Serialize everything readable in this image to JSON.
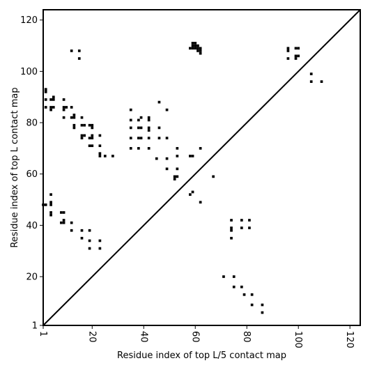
{
  "chart_data": {
    "type": "heatmap",
    "title": "",
    "xlabel": "Residue index of top L/5 contact map",
    "ylabel": "Residue index of top L contact map",
    "xlim": [
      1,
      124
    ],
    "ylim": [
      1,
      124
    ],
    "x_ticks": [
      1,
      20,
      40,
      60,
      80,
      100,
      120
    ],
    "y_ticks": [
      1,
      20,
      40,
      60,
      80,
      100,
      120
    ],
    "diagonal": true,
    "grid": false,
    "cell_color": "#000000",
    "points": [
      [
        12,
        108
      ],
      [
        15,
        108
      ],
      [
        15,
        105
      ],
      [
        59,
        109
      ],
      [
        59,
        110
      ],
      [
        59,
        111
      ],
      [
        60,
        109
      ],
      [
        60,
        110
      ],
      [
        60,
        111
      ],
      [
        61,
        108
      ],
      [
        61,
        109
      ],
      [
        61,
        110
      ],
      [
        62,
        107
      ],
      [
        62,
        108
      ],
      [
        62,
        109
      ],
      [
        58,
        109
      ],
      [
        96,
        109
      ],
      [
        96,
        108
      ],
      [
        96,
        105
      ],
      [
        99,
        109
      ],
      [
        100,
        109
      ],
      [
        99,
        106
      ],
      [
        100,
        106
      ],
      [
        99,
        105
      ],
      [
        105,
        99
      ],
      [
        105,
        96
      ],
      [
        109,
        96
      ],
      [
        2,
        93
      ],
      [
        2,
        92
      ],
      [
        2,
        89
      ],
      [
        2,
        86
      ],
      [
        4,
        89
      ],
      [
        5,
        90
      ],
      [
        5,
        89
      ],
      [
        4,
        86
      ],
      [
        4,
        85
      ],
      [
        5,
        86
      ],
      [
        9,
        89
      ],
      [
        9,
        86
      ],
      [
        10,
        86
      ],
      [
        9,
        85
      ],
      [
        9,
        82
      ],
      [
        12,
        86
      ],
      [
        12,
        82
      ],
      [
        13,
        83
      ],
      [
        13,
        82
      ],
      [
        13,
        79
      ],
      [
        13,
        78
      ],
      [
        16,
        82
      ],
      [
        16,
        79
      ],
      [
        17,
        79
      ],
      [
        16,
        75
      ],
      [
        17,
        75
      ],
      [
        16,
        74
      ],
      [
        19,
        79
      ],
      [
        20,
        79
      ],
      [
        20,
        78
      ],
      [
        19,
        74
      ],
      [
        20,
        75
      ],
      [
        20,
        74
      ],
      [
        19,
        71
      ],
      [
        20,
        71
      ],
      [
        23,
        75
      ],
      [
        23,
        71
      ],
      [
        23,
        68
      ],
      [
        23,
        67
      ],
      [
        25,
        67
      ],
      [
        28,
        67
      ],
      [
        35,
        85
      ],
      [
        35,
        81
      ],
      [
        35,
        78
      ],
      [
        35,
        74
      ],
      [
        35,
        70
      ],
      [
        38,
        81
      ],
      [
        39,
        82
      ],
      [
        38,
        78
      ],
      [
        39,
        78
      ],
      [
        38,
        74
      ],
      [
        39,
        74
      ],
      [
        38,
        70
      ],
      [
        42,
        82
      ],
      [
        42,
        81
      ],
      [
        42,
        78
      ],
      [
        42,
        77
      ],
      [
        42,
        74
      ],
      [
        42,
        70
      ],
      [
        46,
        88
      ],
      [
        46,
        78
      ],
      [
        46,
        74
      ],
      [
        45,
        66
      ],
      [
        49,
        85
      ],
      [
        49,
        74
      ],
      [
        49,
        66
      ],
      [
        49,
        62
      ],
      [
        53,
        70
      ],
      [
        53,
        67
      ],
      [
        53,
        62
      ],
      [
        52,
        59
      ],
      [
        53,
        59
      ],
      [
        52,
        58
      ],
      [
        58,
        67
      ],
      [
        59,
        67
      ],
      [
        62,
        70
      ],
      [
        67,
        59
      ],
      [
        58,
        52
      ],
      [
        59,
        53
      ],
      [
        62,
        49
      ],
      [
        1,
        48
      ],
      [
        2,
        48
      ],
      [
        4,
        52
      ],
      [
        4,
        49
      ],
      [
        4,
        48
      ],
      [
        4,
        45
      ],
      [
        4,
        44
      ],
      [
        8,
        45
      ],
      [
        9,
        45
      ],
      [
        8,
        41
      ],
      [
        9,
        42
      ],
      [
        9,
        41
      ],
      [
        12,
        41
      ],
      [
        12,
        38
      ],
      [
        16,
        38
      ],
      [
        19,
        38
      ],
      [
        16,
        35
      ],
      [
        19,
        34
      ],
      [
        19,
        31
      ],
      [
        23,
        34
      ],
      [
        23,
        31
      ],
      [
        74,
        42
      ],
      [
        74,
        39
      ],
      [
        74,
        38
      ],
      [
        74,
        35
      ],
      [
        78,
        42
      ],
      [
        78,
        39
      ],
      [
        81,
        42
      ],
      [
        81,
        39
      ],
      [
        71,
        20
      ],
      [
        75,
        20
      ],
      [
        75,
        16
      ],
      [
        78,
        16
      ],
      [
        79,
        13
      ],
      [
        82,
        13
      ],
      [
        82,
        9
      ],
      [
        86,
        9
      ],
      [
        86,
        6
      ]
    ]
  }
}
